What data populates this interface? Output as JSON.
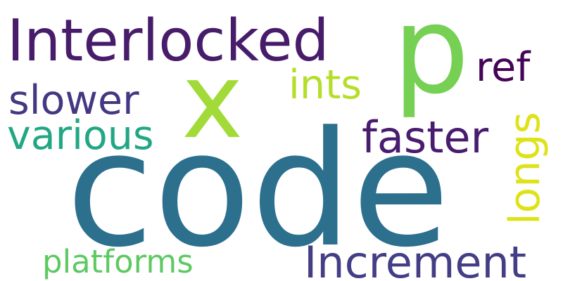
{
  "words": [
    {
      "id": "code",
      "text": "code",
      "color": "#2c708e"
    },
    {
      "id": "p",
      "text": "p",
      "color": "#75d054"
    },
    {
      "id": "interlocked",
      "text": "Interlocked",
      "color": "#471c6a"
    },
    {
      "id": "x",
      "text": "x",
      "color": "#a2da37"
    },
    {
      "id": "increment",
      "text": "Increment",
      "color": "#433e85"
    },
    {
      "id": "slower",
      "text": "slower",
      "color": "#453882"
    },
    {
      "id": "various",
      "text": "various",
      "color": "#22a785"
    },
    {
      "id": "faster",
      "text": "faster",
      "color": "#481c6e"
    },
    {
      "id": "ints",
      "text": "ints",
      "color": "#b5de2b"
    },
    {
      "id": "ref",
      "text": "ref",
      "color": "#450457"
    },
    {
      "id": "longs",
      "text": "longs",
      "color": "#dde318"
    },
    {
      "id": "platforms",
      "text": "platforms",
      "color": "#5ec962"
    }
  ]
}
